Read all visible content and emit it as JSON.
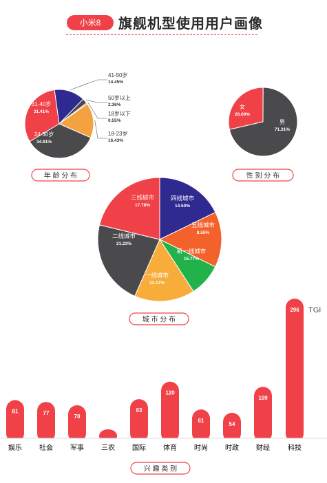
{
  "header": {
    "badge": "小米8",
    "title": "旗舰机型使用用户画像"
  },
  "colors": {
    "red": "#f04148",
    "dark": "#4a4a4d",
    "blue": "#2e2a8f",
    "orange": "#f4a23f",
    "orange_red": "#f4622c",
    "green": "#22b24c",
    "gold": "#f8ad3a"
  },
  "tgi_label": "TGI",
  "chart_data": [
    {
      "type": "pie",
      "title": "年龄分布",
      "slices": [
        {
          "label": "31-40岁",
          "value": 31.41,
          "value_label": "31.41%",
          "color": "#f04148"
        },
        {
          "label": "41-50岁",
          "value": 14.45,
          "value_label": "14.45%",
          "color": "#2e2a8f"
        },
        {
          "label": "50岁以上",
          "value": 2.36,
          "value_label": "2.36%",
          "color": "#4a4a4d"
        },
        {
          "label": "18岁以下",
          "value": 0.55,
          "value_label": "0.55%",
          "color": "#f4622c"
        },
        {
          "label": "18-23岁",
          "value": 16.43,
          "value_label": "16.43%",
          "color": "#f4a23f"
        },
        {
          "label": "24-30岁",
          "value": 34.81,
          "value_label": "34.81%",
          "color": "#4a4a4d"
        }
      ]
    },
    {
      "type": "pie",
      "title": "性别分布",
      "slices": [
        {
          "label": "女",
          "value": 28.69,
          "value_label": "28.69%",
          "color": "#f04148"
        },
        {
          "label": "男",
          "value": 71.31,
          "value_label": "71.31%",
          "color": "#4a4a4d"
        }
      ]
    },
    {
      "type": "pie",
      "title": "城市分布",
      "slices": [
        {
          "label": "三线城市",
          "value": 17.78,
          "value_label": "17.78%",
          "color": "#2e2a8f"
        },
        {
          "label": "四线城市",
          "value": 14.5,
          "value_label": "14.50%",
          "color": "#f4622c"
        },
        {
          "label": "五线城市",
          "value": 8.55,
          "value_label": "8.55%",
          "color": "#22b24c"
        },
        {
          "label": "新一线城市",
          "value": 15.77,
          "value_label": "15.77%",
          "color": "#f8ad3a"
        },
        {
          "label": "一线城市",
          "value": 22.17,
          "value_label": "22.17%",
          "color": "#4a4a4d"
        },
        {
          "label": "二线城市",
          "value": 21.23,
          "value_label": "21.23%",
          "color": "#f04148"
        }
      ]
    },
    {
      "type": "bar",
      "title": "兴趣类别",
      "ylabel": "TGI",
      "categories": [
        "娱乐",
        "社会",
        "军事",
        "三农",
        "国际",
        "体育",
        "时尚",
        "时政",
        "财经",
        "科技"
      ],
      "values": [
        81,
        77,
        70,
        19,
        83,
        120,
        61,
        54,
        109,
        296
      ],
      "color": "#f04148"
    }
  ]
}
